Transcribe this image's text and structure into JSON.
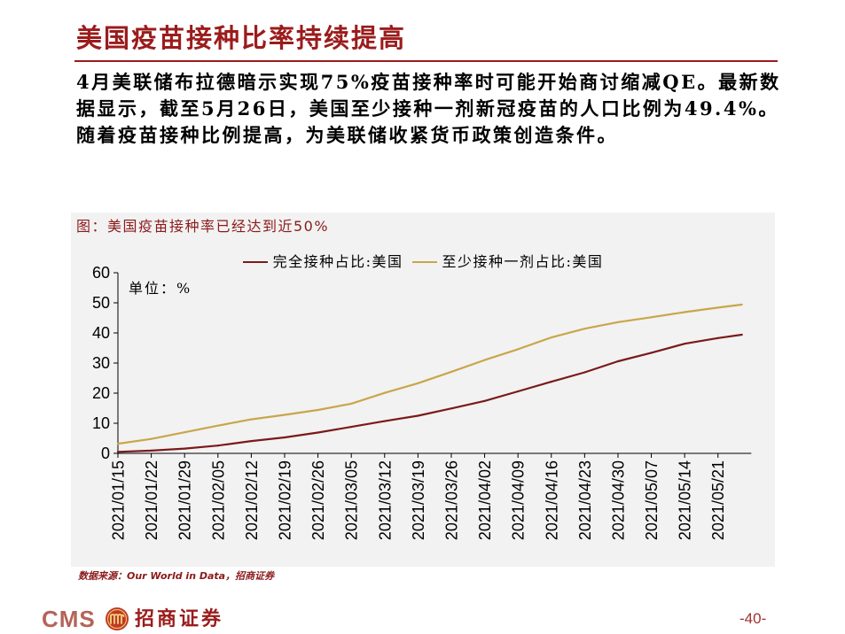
{
  "slide": {
    "title": "美国疫苗接种比率持续提高",
    "body_lines": [
      "4月美联储布拉德暗示实现75%疫苗接种率时可能开始商讨缩减QE。最新数",
      "据显示，截至5月26日，美国至少接种一剂新冠疫苗的人口比例为49.4%。",
      "随着疫苗接种比例提高，为美联储收紧货币政策创造条件。"
    ],
    "source": "数据来源：Our World in Data，招商证券",
    "page_number": "-40-"
  },
  "footer": {
    "logo_text": "CMS",
    "company_name": "招商证券",
    "logo_icon": "cms-emblem-icon"
  },
  "colors": {
    "accent": "#9b1c1c",
    "chart_background": "#f2f2f2"
  },
  "chart_data": {
    "type": "line",
    "title": "图：美国疫苗接种率已经达到近50%",
    "unit_label": "单位：%",
    "x": [
      "2021/01/15",
      "2021/01/22",
      "2021/01/29",
      "2021/02/05",
      "2021/02/12",
      "2021/02/19",
      "2021/02/26",
      "2021/03/05",
      "2021/03/12",
      "2021/03/19",
      "2021/03/26",
      "2021/04/02",
      "2021/04/09",
      "2021/04/16",
      "2021/04/23",
      "2021/04/30",
      "2021/05/07",
      "2021/05/14",
      "2021/05/21",
      "2021/05/26"
    ],
    "xtick_labels": [
      "2021/01/15",
      "2021/01/22",
      "2021/01/29",
      "2021/02/05",
      "2021/02/12",
      "2021/02/19",
      "2021/02/26",
      "2021/03/05",
      "2021/03/12",
      "2021/03/19",
      "2021/03/26",
      "2021/04/02",
      "2021/04/09",
      "2021/04/16",
      "2021/04/23",
      "2021/04/30",
      "2021/05/07",
      "2021/05/14",
      "2021/05/21"
    ],
    "series": [
      {
        "name": "完全接种占比:美国",
        "color": "#7b1a1a",
        "values": [
          0.5,
          0.9,
          1.6,
          2.6,
          4.1,
          5.3,
          6.9,
          8.8,
          10.7,
          12.5,
          14.9,
          17.4,
          20.6,
          23.8,
          26.9,
          30.6,
          33.4,
          36.4,
          38.3,
          39.4
        ]
      },
      {
        "name": "至少接种一剂占比:美国",
        "color": "#c9a64b",
        "values": [
          3.2,
          4.8,
          7.0,
          9.2,
          11.3,
          12.8,
          14.4,
          16.5,
          20.1,
          23.3,
          27.1,
          31.0,
          34.6,
          38.5,
          41.4,
          43.6,
          45.2,
          46.9,
          48.4,
          49.4
        ]
      }
    ],
    "ylim": [
      0,
      60
    ],
    "yticks": [
      0,
      10,
      20,
      30,
      40,
      50,
      60
    ],
    "xlabel": "",
    "ylabel": "",
    "legend": "top-center",
    "grid": false
  }
}
